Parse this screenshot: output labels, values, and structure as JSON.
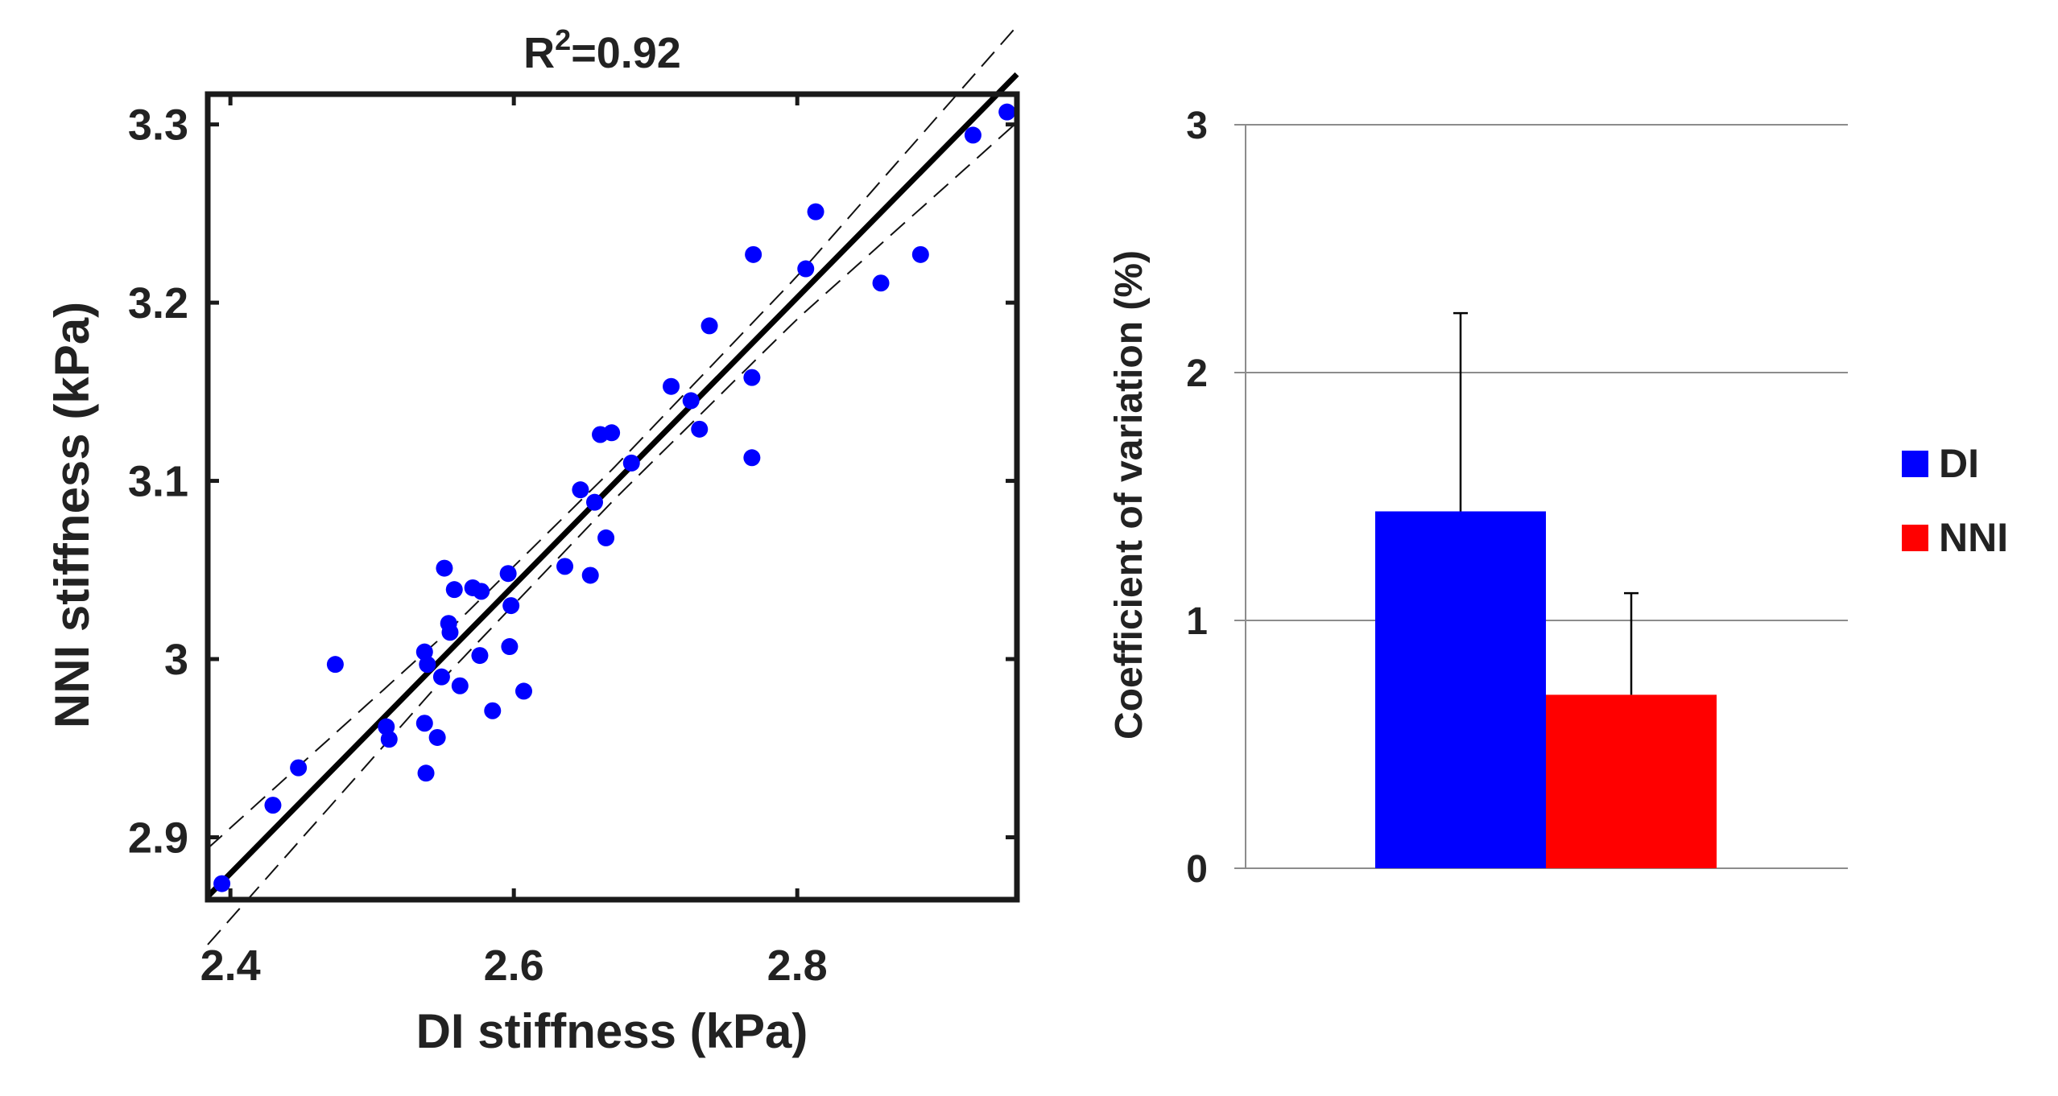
{
  "chart_data": [
    {
      "type": "scatter",
      "title_base": "R",
      "title_sup": "2",
      "title_rest": "=0.92",
      "xlabel": "DI stiffness (kPa)",
      "ylabel": "NNI stiffness (kPa)",
      "xlim": [
        2.384,
        2.955
      ],
      "ylim": [
        2.865,
        3.317
      ],
      "xticks": [
        2.4,
        2.6,
        2.8
      ],
      "xtick_labels": [
        "2.4",
        "2.6",
        "2.8"
      ],
      "yticks": [
        2.9,
        3.0,
        3.1,
        3.2,
        3.3
      ],
      "ytick_labels": [
        "2.9",
        "3",
        "3.1",
        "3.2",
        "3.3"
      ],
      "fit_line": {
        "slope": 0.808,
        "intercept": 0.9405
      },
      "ci_offsets": [
        [
          2.384,
          0.027
        ],
        [
          2.55,
          0.012
        ],
        [
          2.67,
          0.009
        ],
        [
          2.8,
          0.012
        ],
        [
          2.955,
          0.027
        ]
      ],
      "series": [
        {
          "name": "data",
          "color": "#0000ff",
          "points": [
            [
              2.394,
              2.874
            ],
            [
              2.43,
              2.918
            ],
            [
              2.448,
              2.939
            ],
            [
              2.474,
              2.997
            ],
            [
              2.51,
              2.962
            ],
            [
              2.512,
              2.955
            ],
            [
              2.537,
              2.964
            ],
            [
              2.537,
              3.004
            ],
            [
              2.538,
              2.936
            ],
            [
              2.539,
              2.997
            ],
            [
              2.546,
              2.956
            ],
            [
              2.549,
              2.99
            ],
            [
              2.551,
              3.051
            ],
            [
              2.554,
              3.02
            ],
            [
              2.555,
              3.015
            ],
            [
              2.558,
              3.039
            ],
            [
              2.562,
              2.985
            ],
            [
              2.571,
              3.04
            ],
            [
              2.576,
              3.002
            ],
            [
              2.577,
              3.038
            ],
            [
              2.585,
              2.971
            ],
            [
              2.596,
              3.048
            ],
            [
              2.597,
              3.007
            ],
            [
              2.598,
              3.03
            ],
            [
              2.607,
              2.982
            ],
            [
              2.636,
              3.052
            ],
            [
              2.647,
              3.095
            ],
            [
              2.654,
              3.047
            ],
            [
              2.657,
              3.088
            ],
            [
              2.661,
              3.126
            ],
            [
              2.665,
              3.068
            ],
            [
              2.669,
              3.127
            ],
            [
              2.683,
              3.11
            ],
            [
              2.711,
              3.153
            ],
            [
              2.725,
              3.145
            ],
            [
              2.731,
              3.129
            ],
            [
              2.738,
              3.187
            ],
            [
              2.768,
              3.113
            ],
            [
              2.768,
              3.158
            ],
            [
              2.769,
              3.227
            ],
            [
              2.806,
              3.219
            ],
            [
              2.813,
              3.251
            ],
            [
              2.859,
              3.211
            ],
            [
              2.887,
              3.227
            ],
            [
              2.924,
              3.294
            ],
            [
              2.948,
              3.307
            ]
          ]
        }
      ]
    },
    {
      "type": "bar",
      "categories": [
        ""
      ],
      "ylabel": "Coefficient of variation (%)",
      "ylim": [
        0,
        3
      ],
      "yticks": [
        0,
        1,
        2,
        3
      ],
      "ytick_labels": [
        "0",
        "1",
        "2",
        "3"
      ],
      "grid": true,
      "legend_position": "right",
      "series": [
        {
          "name": "DI",
          "color": "#0000ff",
          "values": [
            1.44
          ],
          "error": [
            0.8
          ]
        },
        {
          "name": "NNI",
          "color": "#ff0000",
          "values": [
            0.7
          ],
          "error": [
            0.41
          ]
        }
      ]
    }
  ]
}
